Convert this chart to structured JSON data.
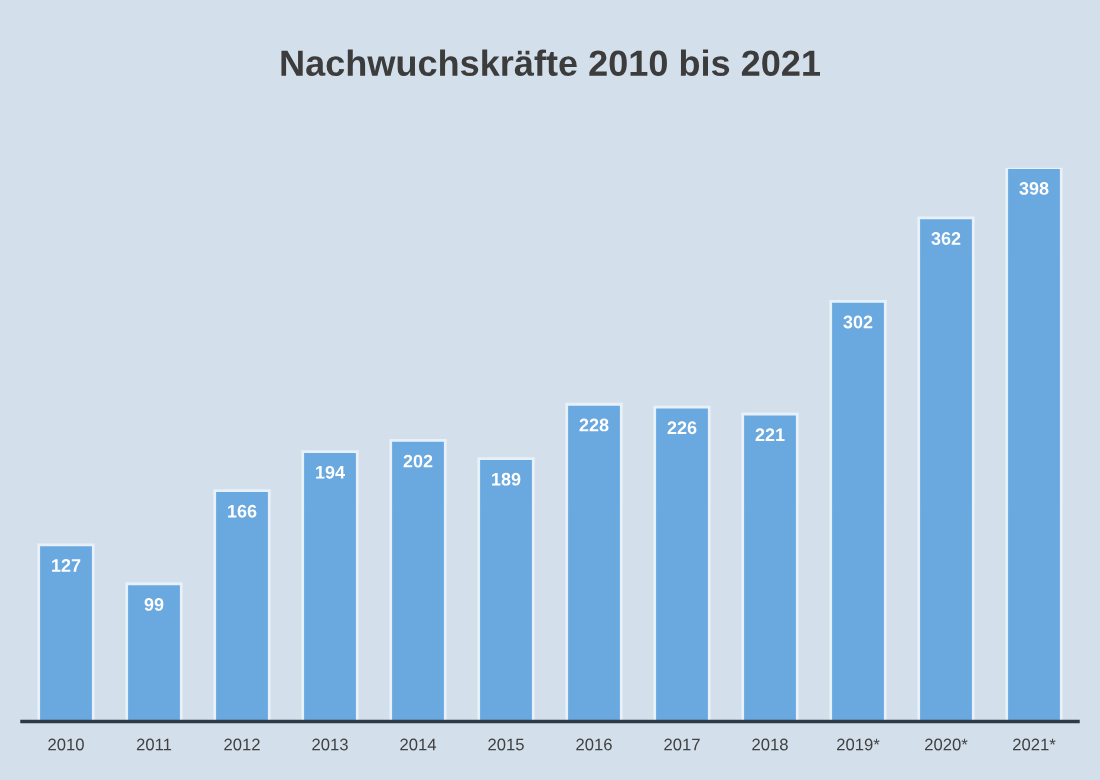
{
  "chart_data": {
    "type": "bar",
    "title": "Nachwuchskräfte 2010 bis 2021",
    "categories": [
      "2010",
      "2011",
      "2012",
      "2013",
      "2014",
      "2015",
      "2016",
      "2017",
      "2018",
      "2019*",
      "2020*",
      "2021*"
    ],
    "values": [
      127,
      99,
      166,
      194,
      202,
      189,
      228,
      226,
      221,
      302,
      362,
      398
    ],
    "color": "#6aa8e0",
    "data_labels": true,
    "grid": false,
    "legend": false
  }
}
